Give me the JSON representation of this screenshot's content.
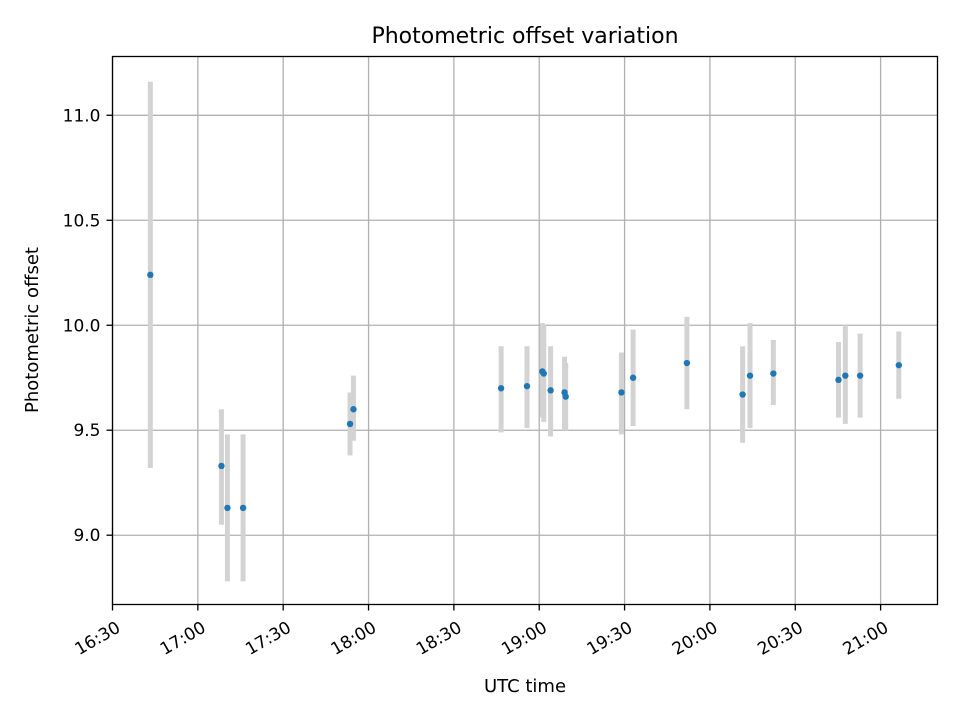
{
  "chart_data": {
    "type": "scatter",
    "title": "Photometric offset variation",
    "xlabel": "UTC time",
    "ylabel": "Photometric offset",
    "xlim_minutes": [
      990,
      1280
    ],
    "ylim": [
      8.67,
      11.28
    ],
    "grid": true,
    "x_ticks": [
      {
        "minutes": 990,
        "label": "16:30"
      },
      {
        "minutes": 1020,
        "label": "17:00"
      },
      {
        "minutes": 1050,
        "label": "17:30"
      },
      {
        "minutes": 1080,
        "label": "18:00"
      },
      {
        "minutes": 1110,
        "label": "18:30"
      },
      {
        "minutes": 1140,
        "label": "19:00"
      },
      {
        "minutes": 1170,
        "label": "19:30"
      },
      {
        "minutes": 1200,
        "label": "20:00"
      },
      {
        "minutes": 1230,
        "label": "20:30"
      },
      {
        "minutes": 1260,
        "label": "21:00"
      }
    ],
    "y_ticks": [
      {
        "value": 9.0,
        "label": "9.0"
      },
      {
        "value": 9.5,
        "label": "9.5"
      },
      {
        "value": 10.0,
        "label": "10.0"
      },
      {
        "value": 10.5,
        "label": "10.5"
      },
      {
        "value": 11.0,
        "label": "11.0"
      }
    ],
    "marker_color": "#1f77b4",
    "errorbar_color": "#d3d3d3",
    "points": [
      {
        "time": "16:43",
        "minutes": 1003.3,
        "y": 10.24,
        "ylow": 9.32,
        "yhigh": 11.16
      },
      {
        "time": "17:08",
        "minutes": 1028.3,
        "y": 9.33,
        "ylow": 9.05,
        "yhigh": 9.6
      },
      {
        "time": "17:10",
        "minutes": 1030.4,
        "y": 9.13,
        "ylow": 8.78,
        "yhigh": 9.48
      },
      {
        "time": "17:16",
        "minutes": 1035.9,
        "y": 9.13,
        "ylow": 8.78,
        "yhigh": 9.48
      },
      {
        "time": "17:54",
        "minutes": 1073.5,
        "y": 9.53,
        "ylow": 9.38,
        "yhigh": 9.68
      },
      {
        "time": "17:55",
        "minutes": 1074.7,
        "y": 9.6,
        "ylow": 9.45,
        "yhigh": 9.76
      },
      {
        "time": "18:47",
        "minutes": 1126.6,
        "y": 9.7,
        "ylow": 9.49,
        "yhigh": 9.9
      },
      {
        "time": "18:56",
        "minutes": 1135.7,
        "y": 9.71,
        "ylow": 9.51,
        "yhigh": 9.9
      },
      {
        "time": "19:01",
        "minutes": 1141.1,
        "y": 9.78,
        "ylow": 9.56,
        "yhigh": 10.01
      },
      {
        "time": "19:01",
        "minutes": 1141.6,
        "y": 9.77,
        "ylow": 9.54,
        "yhigh": 10.0
      },
      {
        "time": "19:04",
        "minutes": 1144.0,
        "y": 9.69,
        "ylow": 9.47,
        "yhigh": 9.9
      },
      {
        "time": "19:09",
        "minutes": 1148.9,
        "y": 9.68,
        "ylow": 9.5,
        "yhigh": 9.85
      },
      {
        "time": "19:09",
        "minutes": 1149.3,
        "y": 9.66,
        "ylow": 9.5,
        "yhigh": 9.82
      },
      {
        "time": "19:29",
        "minutes": 1168.9,
        "y": 9.68,
        "ylow": 9.48,
        "yhigh": 9.87
      },
      {
        "time": "19:33",
        "minutes": 1173.0,
        "y": 9.75,
        "ylow": 9.52,
        "yhigh": 9.98
      },
      {
        "time": "19:52",
        "minutes": 1191.9,
        "y": 9.82,
        "ylow": 9.6,
        "yhigh": 10.04
      },
      {
        "time": "20:11",
        "minutes": 1211.5,
        "y": 9.67,
        "ylow": 9.44,
        "yhigh": 9.9
      },
      {
        "time": "20:14",
        "minutes": 1214.1,
        "y": 9.76,
        "ylow": 9.51,
        "yhigh": 10.01
      },
      {
        "time": "20:22",
        "minutes": 1222.3,
        "y": 9.77,
        "ylow": 9.62,
        "yhigh": 9.93
      },
      {
        "time": "20:45",
        "minutes": 1245.2,
        "y": 9.74,
        "ylow": 9.56,
        "yhigh": 9.92
      },
      {
        "time": "20:48",
        "minutes": 1247.6,
        "y": 9.76,
        "ylow": 9.53,
        "yhigh": 10.0
      },
      {
        "time": "20:53",
        "minutes": 1252.8,
        "y": 9.76,
        "ylow": 9.56,
        "yhigh": 9.96
      },
      {
        "time": "21:06",
        "minutes": 1266.4,
        "y": 9.81,
        "ylow": 9.65,
        "yhigh": 9.97
      }
    ]
  }
}
